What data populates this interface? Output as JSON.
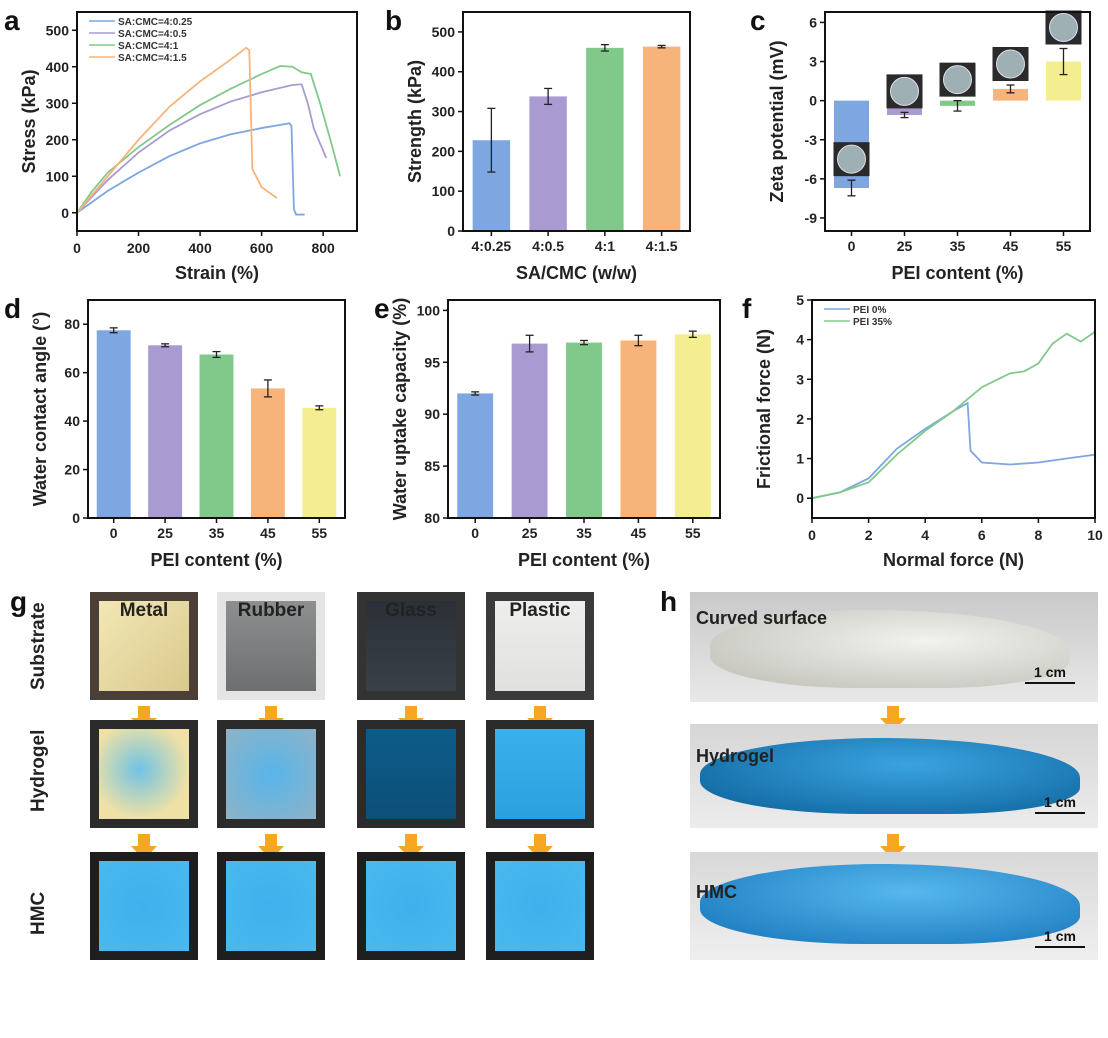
{
  "panel_letters": [
    "a",
    "b",
    "c",
    "d",
    "e",
    "f",
    "g",
    "h"
  ],
  "colors": {
    "blue": "#7ea6e0",
    "purple": "#a99bd2",
    "green": "#80c98b",
    "orange": "#f7b47a",
    "yellow": "#f4ee90",
    "arrow": "#f5a623"
  },
  "chart_data": [
    {
      "id": "a",
      "type": "line",
      "xlabel": "Strain (%)",
      "ylabel": "Stress (kPa)",
      "xlim": [
        0,
        910
      ],
      "ylim": [
        -50,
        550
      ],
      "xticks": [
        0,
        200,
        400,
        600,
        800
      ],
      "yticks": [
        0,
        100,
        200,
        300,
        400,
        500
      ],
      "legend": "top-left",
      "grid": false,
      "series": [
        {
          "name": "SA:CMC=4:0.25",
          "color": "#7ea6e0",
          "points": [
            [
              0,
              0
            ],
            [
              100,
              60
            ],
            [
              200,
              110
            ],
            [
              300,
              155
            ],
            [
              400,
              190
            ],
            [
              500,
              215
            ],
            [
              600,
              232
            ],
            [
              690,
              245
            ],
            [
              697,
              238
            ],
            [
              705,
              10
            ],
            [
              712,
              -5
            ],
            [
              740,
              -5
            ]
          ]
        },
        {
          "name": "SA:CMC=4:0.5",
          "color": "#a99bd2",
          "points": [
            [
              0,
              0
            ],
            [
              100,
              90
            ],
            [
              200,
              165
            ],
            [
              300,
              225
            ],
            [
              400,
              270
            ],
            [
              500,
              305
            ],
            [
              600,
              330
            ],
            [
              700,
              350
            ],
            [
              730,
              352
            ],
            [
              750,
              300
            ],
            [
              770,
              230
            ],
            [
              810,
              150
            ]
          ]
        },
        {
          "name": "SA:CMC=4:1",
          "color": "#80c98b",
          "points": [
            [
              0,
              0
            ],
            [
              50,
              60
            ],
            [
              100,
              110
            ],
            [
              200,
              180
            ],
            [
              300,
              240
            ],
            [
              400,
              295
            ],
            [
              500,
              340
            ],
            [
              600,
              380
            ],
            [
              660,
              402
            ],
            [
              700,
              400
            ],
            [
              730,
              385
            ],
            [
              760,
              380
            ],
            [
              790,
              300
            ],
            [
              830,
              180
            ],
            [
              855,
              100
            ]
          ]
        },
        {
          "name": "SA:CMC=4:1.5",
          "color": "#f7b47a",
          "points": [
            [
              0,
              0
            ],
            [
              100,
              100
            ],
            [
              200,
              200
            ],
            [
              300,
              290
            ],
            [
              400,
              360
            ],
            [
              500,
              420
            ],
            [
              550,
              452
            ],
            [
              560,
              445
            ],
            [
              570,
              120
            ],
            [
              600,
              70
            ],
            [
              650,
              40
            ]
          ]
        }
      ]
    },
    {
      "id": "b",
      "type": "bar",
      "xlabel": "SA/CMC (w/w)",
      "ylabel": "Strength (kPa)",
      "ylim": [
        0,
        550
      ],
      "yticks": [
        0,
        100,
        200,
        300,
        400,
        500
      ],
      "categories": [
        "4:0.25",
        "4:0.5",
        "4:1",
        "4:1.5"
      ],
      "values": [
        228,
        338,
        460,
        463
      ],
      "errors": [
        80,
        20,
        8,
        3
      ],
      "colors": [
        "#7ea6e0",
        "#a99bd2",
        "#80c98b",
        "#f7b47a"
      ]
    },
    {
      "id": "c",
      "type": "bar",
      "xlabel": "PEI content (%)",
      "ylabel": "Zeta potential (mV)",
      "ylim": [
        -10,
        6.8
      ],
      "yticks": [
        -9,
        -6,
        -3,
        0,
        3,
        6
      ],
      "categories": [
        "0",
        "25",
        "35",
        "45",
        "55"
      ],
      "values": [
        -6.7,
        -1.1,
        -0.4,
        0.9,
        3.0
      ],
      "errors": [
        0.6,
        0.2,
        0.4,
        0.3,
        1.0
      ],
      "colors": [
        "#7ea6e0",
        "#a99bd2",
        "#80c98b",
        "#f7b47a",
        "#f4ee90"
      ],
      "insets": "droplet photos above bars"
    },
    {
      "id": "d",
      "type": "bar",
      "xlabel": "PEI content (%)",
      "ylabel": "Water contact angle (°)",
      "ylim": [
        0,
        90
      ],
      "yticks": [
        0,
        20,
        40,
        60,
        80
      ],
      "categories": [
        "0",
        "25",
        "35",
        "45",
        "55"
      ],
      "values": [
        77.5,
        71.3,
        67.5,
        53.5,
        45.5
      ],
      "errors": [
        1.0,
        0.6,
        1.2,
        3.5,
        0.8
      ],
      "colors": [
        "#7ea6e0",
        "#a99bd2",
        "#80c98b",
        "#f7b47a",
        "#f4ee90"
      ]
    },
    {
      "id": "e",
      "type": "bar",
      "xlabel": "PEI content (%)",
      "ylabel": "Water uptake capacity (%)",
      "ylim": [
        80,
        101
      ],
      "yticks": [
        80,
        85,
        90,
        95,
        100
      ],
      "categories": [
        "0",
        "25",
        "35",
        "45",
        "55"
      ],
      "values": [
        92.0,
        96.8,
        96.9,
        97.1,
        97.7
      ],
      "errors": [
        0.15,
        0.8,
        0.2,
        0.5,
        0.3
      ],
      "colors": [
        "#7ea6e0",
        "#a99bd2",
        "#80c98b",
        "#f7b47a",
        "#f4ee90"
      ]
    },
    {
      "id": "f",
      "type": "line",
      "xlabel": "Normal force (N)",
      "ylabel": "Frictional force (N)",
      "xlim": [
        0,
        10
      ],
      "ylim": [
        -0.5,
        5
      ],
      "xticks": [
        0,
        2,
        4,
        6,
        8,
        10
      ],
      "yticks": [
        0,
        1,
        2,
        3,
        4,
        5
      ],
      "legend": "top-left",
      "grid": false,
      "series": [
        {
          "name": "PEI 0%",
          "color": "#7ea6e0",
          "points": [
            [
              0,
              0
            ],
            [
              1,
              0.15
            ],
            [
              2,
              0.5
            ],
            [
              3,
              1.25
            ],
            [
              4,
              1.75
            ],
            [
              5,
              2.2
            ],
            [
              5.5,
              2.4
            ],
            [
              5.6,
              1.2
            ],
            [
              6,
              0.9
            ],
            [
              7,
              0.85
            ],
            [
              8,
              0.9
            ],
            [
              9,
              1.0
            ],
            [
              10,
              1.1
            ]
          ]
        },
        {
          "name": "PEI 35%",
          "color": "#80c98b",
          "points": [
            [
              0,
              0
            ],
            [
              1,
              0.15
            ],
            [
              2,
              0.4
            ],
            [
              3,
              1.1
            ],
            [
              4,
              1.7
            ],
            [
              5,
              2.2
            ],
            [
              6,
              2.8
            ],
            [
              7,
              3.15
            ],
            [
              7.5,
              3.2
            ],
            [
              8,
              3.4
            ],
            [
              8.5,
              3.9
            ],
            [
              9,
              4.15
            ],
            [
              9.5,
              3.95
            ],
            [
              10,
              4.2
            ]
          ]
        }
      ]
    }
  ],
  "panel_g": {
    "row_labels": [
      "Substrate",
      "Hydrogel",
      "HMC"
    ],
    "materials": [
      "Metal",
      "Rubber",
      "Glass",
      "Plastic"
    ]
  },
  "panel_h": {
    "labels": [
      "Curved surface",
      "Hydrogel",
      "HMC"
    ],
    "scale_bar": "1 cm"
  }
}
